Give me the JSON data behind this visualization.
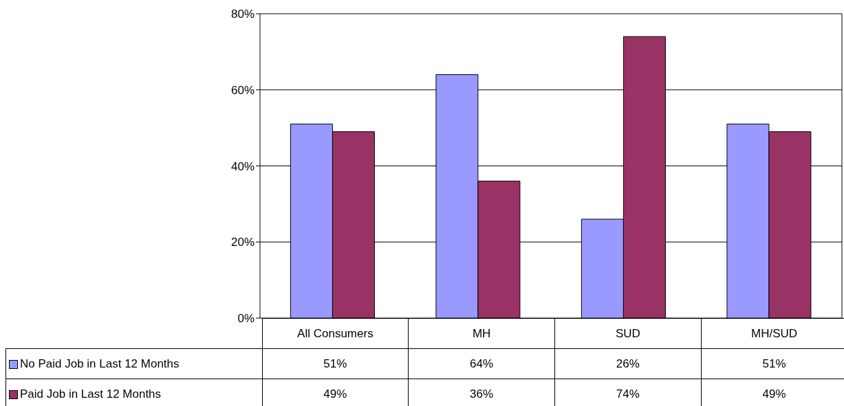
{
  "chart_data": {
    "type": "bar",
    "categories": [
      "All Consumers",
      "MH",
      "SUD",
      "MH/SUD"
    ],
    "series": [
      {
        "name": "No Paid Job in Last 12 Months",
        "color": "#9999ff",
        "values": [
          51,
          64,
          26,
          51
        ],
        "value_labels": [
          "51%",
          "64%",
          "26%",
          "51%"
        ]
      },
      {
        "name": "Paid Job in Last 12 Months",
        "color": "#993366",
        "values": [
          49,
          36,
          74,
          49
        ],
        "value_labels": [
          "49%",
          "36%",
          "74%",
          "49%"
        ]
      }
    ],
    "ylim": [
      0,
      80
    ],
    "yticks": [
      {
        "value": 0,
        "label": "0%"
      },
      {
        "value": 20,
        "label": "20%"
      },
      {
        "value": 40,
        "label": "40%"
      },
      {
        "value": 60,
        "label": "60%"
      },
      {
        "value": 80,
        "label": "80%"
      }
    ],
    "grid": "y",
    "legend": "bottom left"
  }
}
